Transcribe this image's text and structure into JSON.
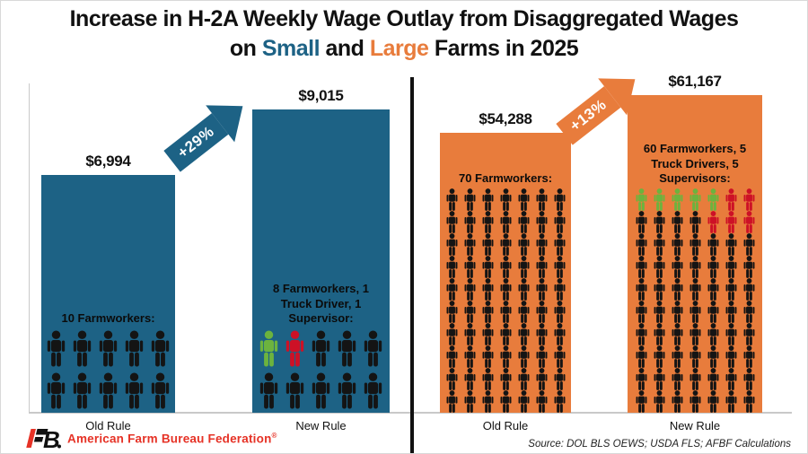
{
  "title": {
    "full": "Increase in H-2A Weekly Wage Outlay from Disaggregated Wages on Small and Large Farms in 2025",
    "segments": [
      {
        "text": "Increase in H-2A Weekly Wage Outlay from Disaggregated Wages on ",
        "color": "#111111"
      },
      {
        "text": "Small",
        "color": "#1d6285"
      },
      {
        "text": " and ",
        "color": "#111111"
      },
      {
        "text": "Large",
        "color": "#e87c3c"
      },
      {
        "text": " Farms in 2025",
        "color": "#111111"
      }
    ]
  },
  "colors": {
    "blue": "#1d6285",
    "orange": "#e87c3c",
    "icon_black": "#141414",
    "icon_green": "#6cb33e",
    "icon_red": "#cd1126",
    "logo_red": "#e63226",
    "axis_gray": "#c9c9c9",
    "divider_black": "#111111"
  },
  "chart_data": {
    "type": "bar",
    "title": "Increase in H-2A Weekly Wage Outlay from Disaggregated Wages on Small and Large Farms in 2025",
    "categories": [
      "Old Rule",
      "New Rule"
    ],
    "legend_note": "icon colors: black = farmworker, green = truck driver, red = supervisor",
    "sections": [
      {
        "name": "Small Farms",
        "color_key": "blue",
        "arrow_label": "+29%",
        "bars": [
          {
            "label": "Old Rule",
            "value": 6994,
            "value_label": "$6,994",
            "desc": "10 Farmworkers:",
            "icon_rows": [
              "kkkkk",
              "kkkkk"
            ]
          },
          {
            "label": "New Rule",
            "value": 9015,
            "value_label": "$9,015",
            "desc": "8 Farmworkers, 1 Truck Driver, 1 Supervisor:",
            "icon_rows": [
              "grkkk",
              "kkkkk"
            ]
          }
        ]
      },
      {
        "name": "Large Farms",
        "color_key": "orange",
        "arrow_label": "+13%",
        "bars": [
          {
            "label": "Old Rule",
            "value": 54288,
            "value_label": "$54,288",
            "desc": "70 Farmworkers:",
            "icon_rows": [
              "kkkkkkk",
              "kkkkkkk",
              "kkkkkkk",
              "kkkkkkk",
              "kkkkkkk",
              "kkkkkkk",
              "kkkkkkk",
              "kkkkkkk",
              "kkkkkkk",
              "kkkkkkk"
            ]
          },
          {
            "label": "New Rule",
            "value": 61167,
            "value_label": "$61,167",
            "desc": "60 Farmworkers, 5 Truck Drivers, 5 Supervisors:",
            "icon_rows": [
              "gggggrr",
              "kkkkrrr",
              "kkkkkkk",
              "kkkkkkk",
              "kkkkkkk",
              "kkkkkkk",
              "kkkkkkk",
              "kkkkkkk",
              "kkkkkkk",
              "kkkkkkk"
            ]
          }
        ]
      }
    ]
  },
  "footer": {
    "logo_letter_b": "B",
    "afbf_text": "American Farm Bureau Federation",
    "afbf_reg": "®",
    "source": "Source: DOL BLS OEWS; USDA FLS; AFBF Calculations"
  }
}
